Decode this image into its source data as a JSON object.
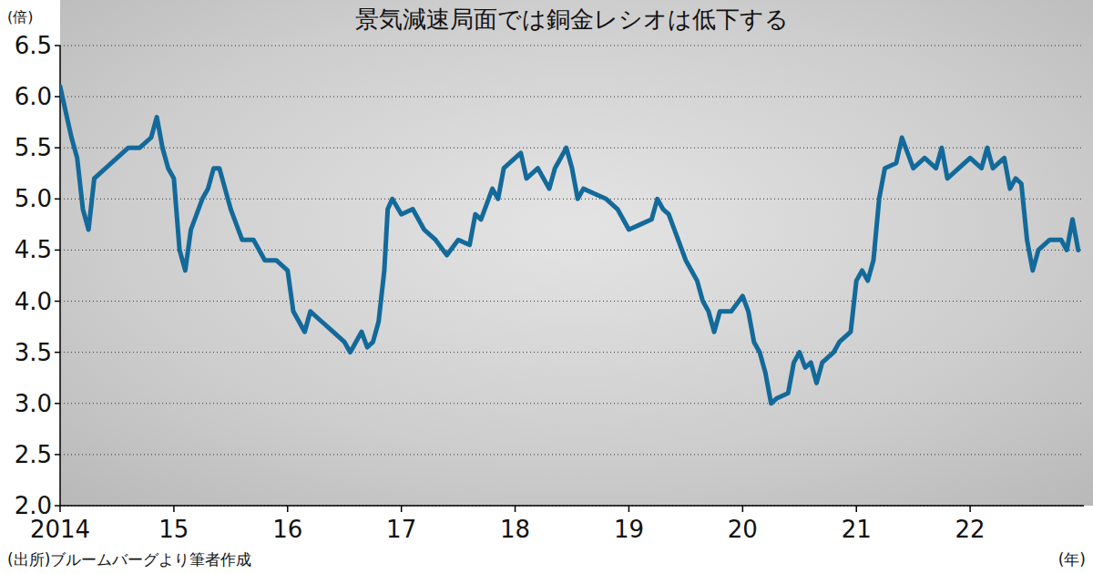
{
  "chart_data": {
    "type": "line",
    "title": "景気減速局面では銅金レシオは低下する",
    "y_axis_label": "(倍)",
    "x_axis_label": "(年)",
    "source": "(出所)ブルームバーグより筆者作成",
    "grid": true,
    "x": [
      2014.0,
      2014.05,
      2014.1,
      2014.15,
      2014.2,
      2014.25,
      2014.3,
      2014.4,
      2014.5,
      2014.6,
      2014.7,
      2014.8,
      2014.85,
      2014.9,
      2014.95,
      2015.0,
      2015.05,
      2015.1,
      2015.15,
      2015.25,
      2015.3,
      2015.35,
      2015.4,
      2015.5,
      2015.6,
      2015.7,
      2015.8,
      2015.9,
      2016.0,
      2016.05,
      2016.1,
      2016.15,
      2016.2,
      2016.3,
      2016.4,
      2016.5,
      2016.55,
      2016.6,
      2016.65,
      2016.7,
      2016.75,
      2016.8,
      2016.85,
      2016.88,
      2016.92,
      2017.0,
      2017.1,
      2017.15,
      2017.2,
      2017.3,
      2017.4,
      2017.5,
      2017.6,
      2017.65,
      2017.7,
      2017.8,
      2017.85,
      2017.9,
      2018.0,
      2018.05,
      2018.1,
      2018.2,
      2018.3,
      2018.35,
      2018.45,
      2018.5,
      2018.55,
      2018.6,
      2018.7,
      2018.8,
      2018.9,
      2019.0,
      2019.1,
      2019.2,
      2019.25,
      2019.3,
      2019.35,
      2019.4,
      2019.5,
      2019.6,
      2019.65,
      2019.7,
      2019.75,
      2019.8,
      2019.9,
      2020.0,
      2020.05,
      2020.1,
      2020.15,
      2020.2,
      2020.25,
      2020.3,
      2020.4,
      2020.45,
      2020.5,
      2020.55,
      2020.6,
      2020.65,
      2020.7,
      2020.8,
      2020.85,
      2020.95,
      2021.0,
      2021.05,
      2021.1,
      2021.15,
      2021.2,
      2021.25,
      2021.35,
      2021.4,
      2021.5,
      2021.6,
      2021.7,
      2021.75,
      2021.8,
      2021.9,
      2022.0,
      2022.1,
      2022.15,
      2022.2,
      2022.3,
      2022.35,
      2022.4,
      2022.45,
      2022.5,
      2022.55,
      2022.6,
      2022.7,
      2022.8,
      2022.85,
      2022.9,
      2022.95
    ],
    "series": [
      {
        "color": "#136a9a",
        "values": [
          6.1,
          5.85,
          5.6,
          5.4,
          4.9,
          4.7,
          5.2,
          5.3,
          5.4,
          5.5,
          5.5,
          5.6,
          5.8,
          5.5,
          5.3,
          5.2,
          4.5,
          4.3,
          4.7,
          5.0,
          5.1,
          5.3,
          5.3,
          4.9,
          4.6,
          4.6,
          4.4,
          4.4,
          4.3,
          3.9,
          3.8,
          3.7,
          3.9,
          3.8,
          3.7,
          3.6,
          3.5,
          3.6,
          3.7,
          3.55,
          3.6,
          3.8,
          4.3,
          4.9,
          5.0,
          4.85,
          4.9,
          4.8,
          4.7,
          4.6,
          4.45,
          4.6,
          4.55,
          4.85,
          4.8,
          5.1,
          5.0,
          5.3,
          5.4,
          5.45,
          5.2,
          5.3,
          5.1,
          5.3,
          5.5,
          5.3,
          5.0,
          5.1,
          5.05,
          5.0,
          4.9,
          4.7,
          4.75,
          4.8,
          5.0,
          4.9,
          4.85,
          4.7,
          4.4,
          4.2,
          4.0,
          3.9,
          3.7,
          3.9,
          3.9,
          4.05,
          3.9,
          3.6,
          3.5,
          3.3,
          3.0,
          3.05,
          3.1,
          3.4,
          3.5,
          3.35,
          3.4,
          3.2,
          3.4,
          3.5,
          3.6,
          3.7,
          4.2,
          4.3,
          4.2,
          4.4,
          5.0,
          5.3,
          5.35,
          5.6,
          5.3,
          5.4,
          5.3,
          5.5,
          5.2,
          5.3,
          5.4,
          5.3,
          5.5,
          5.3,
          5.4,
          5.1,
          5.2,
          5.15,
          4.6,
          4.3,
          4.5,
          4.6,
          4.6,
          4.5,
          4.8,
          4.5
        ]
      }
    ],
    "xlim": [
      2014,
      2023
    ],
    "xticks": [
      2014,
      {
        "value": 2015,
        "label": "15"
      },
      {
        "value": 2016,
        "label": "16"
      },
      {
        "value": 2017,
        "label": "17"
      },
      {
        "value": 2018,
        "label": "18"
      },
      {
        "value": 2019,
        "label": "19"
      },
      {
        "value": 2020,
        "label": "20"
      },
      {
        "value": 2021,
        "label": "21"
      },
      {
        "value": 2022,
        "label": "22"
      }
    ],
    "ylim": [
      2.0,
      6.5
    ],
    "yticks": [
      {
        "value": 2.0,
        "label": "2.0"
      },
      {
        "value": 2.5,
        "label": "2.5"
      },
      {
        "value": 3.0,
        "label": "3.0"
      },
      {
        "value": 3.5,
        "label": "3.5"
      },
      {
        "value": 4.0,
        "label": "4.0"
      },
      {
        "value": 4.5,
        "label": "4.5"
      },
      {
        "value": 5.0,
        "label": "5.0"
      },
      {
        "value": 5.5,
        "label": "5.5"
      },
      {
        "value": 6.0,
        "label": "6.0"
      },
      {
        "value": 6.5,
        "label": "6.5"
      }
    ]
  }
}
